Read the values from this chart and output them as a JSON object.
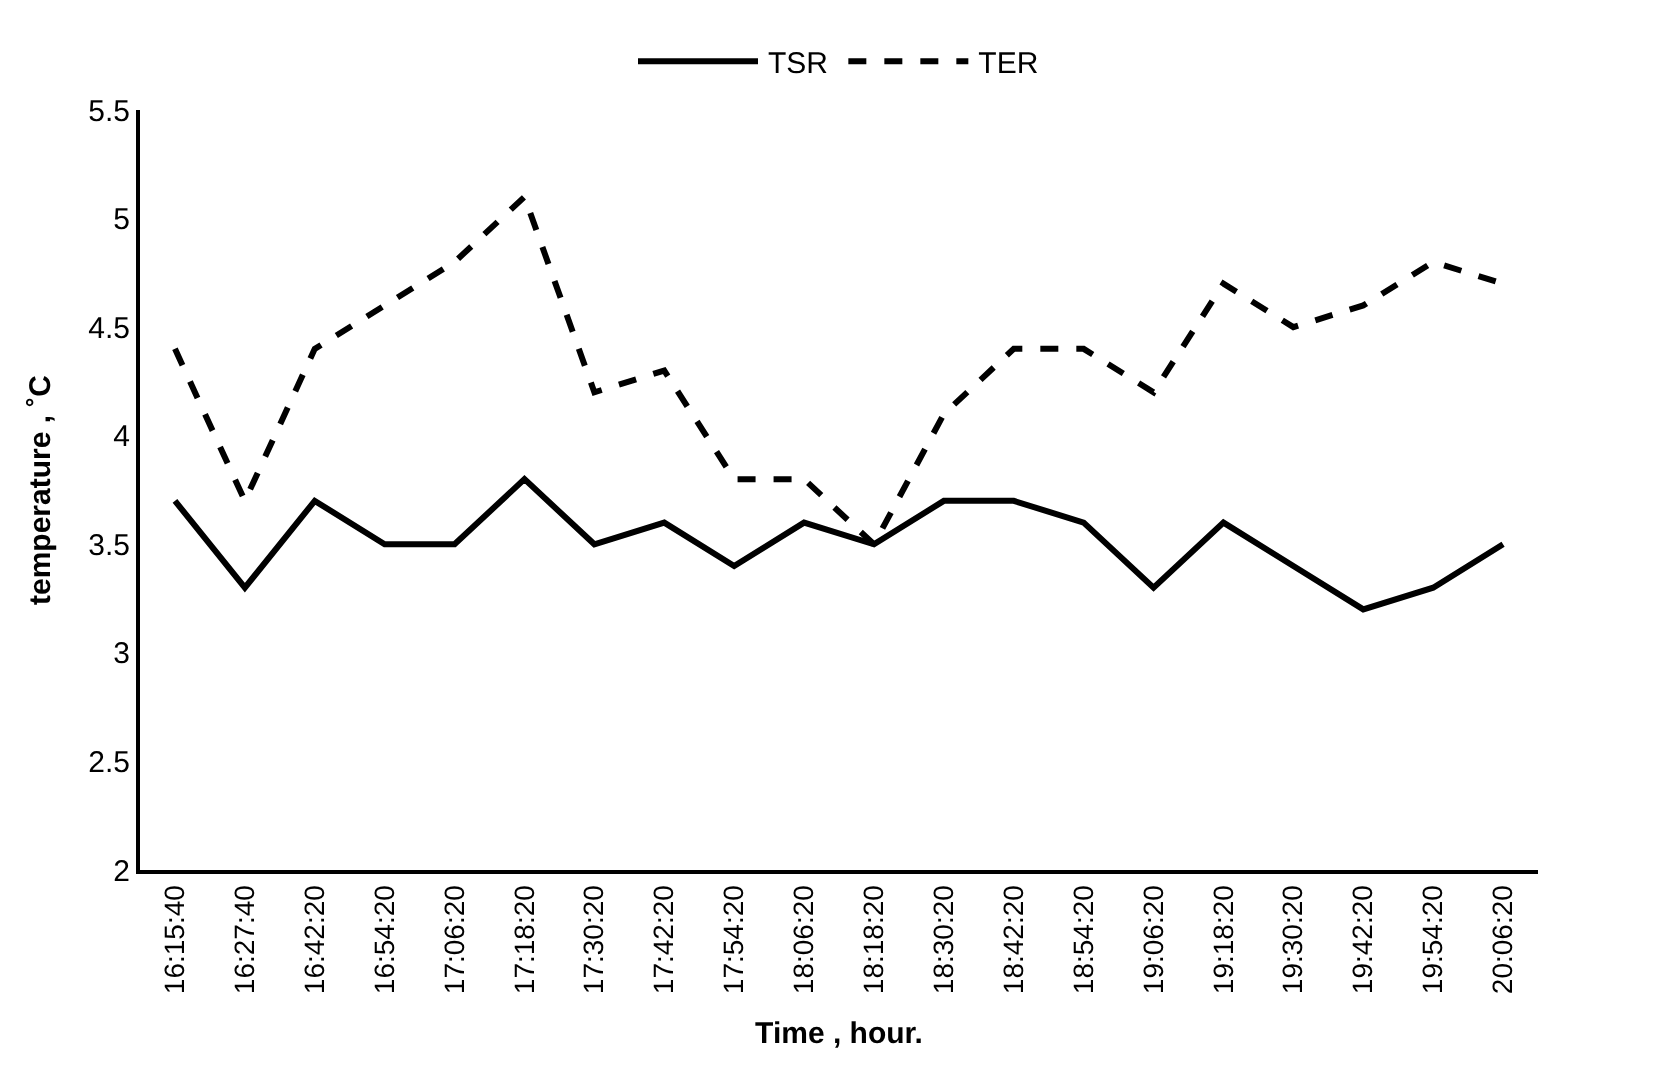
{
  "chart_data": {
    "type": "line",
    "xlabel": "Time , hour.",
    "ylabel": "temperature , ˚C",
    "categories": [
      "16:15:40",
      "16:27:40",
      "16:42:20",
      "16:54:20",
      "17:06:20",
      "17:18:20",
      "17:30:20",
      "17:42:20",
      "17:54:20",
      "18:06:20",
      "18:18:20",
      "18:30:20",
      "18:42:20",
      "18:54:20",
      "19:06:20",
      "19:18:20",
      "19:30:20",
      "19:42:20",
      "19:54:20",
      "20:06:20"
    ],
    "series": [
      {
        "name": "TSR",
        "color": "#000000",
        "line_style": "solid",
        "values": [
          3.7,
          3.3,
          3.7,
          3.5,
          3.5,
          3.8,
          3.5,
          3.6,
          3.4,
          3.6,
          3.5,
          3.7,
          3.7,
          3.6,
          3.3,
          3.6,
          3.4,
          3.2,
          3.3,
          3.5
        ]
      },
      {
        "name": "TER",
        "color": "#000000",
        "line_style": "dashed",
        "values": [
          4.4,
          3.7,
          4.4,
          4.6,
          4.8,
          5.1,
          4.2,
          4.3,
          3.8,
          3.8,
          3.5,
          4.1,
          4.4,
          4.4,
          4.2,
          4.7,
          4.5,
          4.6,
          4.8,
          4.7
        ]
      }
    ],
    "ylim": [
      2,
      5.5
    ],
    "yticks": [
      2,
      2.5,
      3,
      3.5,
      4,
      4.5,
      5,
      5.5
    ],
    "legend": "top",
    "marker": "none"
  }
}
